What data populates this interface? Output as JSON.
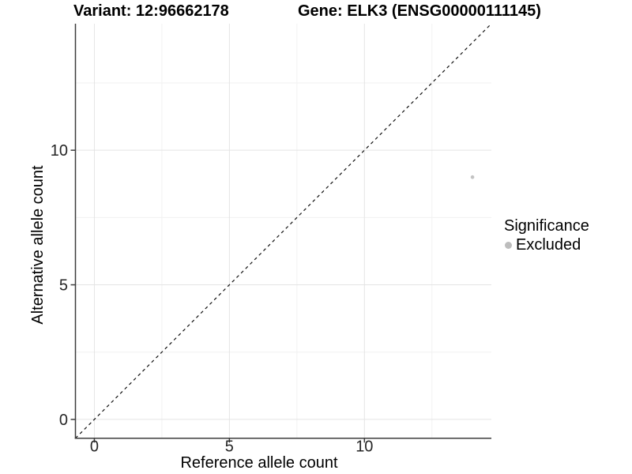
{
  "titles": {
    "variant_title": "Variant: 12:96662178",
    "gene_title": "Gene: ELK3 (ENSG00000111145)"
  },
  "axes": {
    "x_label": "Reference allele count",
    "y_label": "Alternative allele count"
  },
  "legend": {
    "title": "Significance",
    "items": [
      {
        "label": "Excluded",
        "color": "#bdbdbd"
      }
    ]
  },
  "chart_data": {
    "type": "scatter",
    "title_left": "Variant: 12:96662178",
    "title_right": "Gene: ELK3 (ENSG00000111145)",
    "xlabel": "Reference allele count",
    "ylabel": "Alternative allele count",
    "xlim": [
      -0.7,
      14.7
    ],
    "ylim": [
      -0.7,
      14.7
    ],
    "x_ticks": [
      0,
      5,
      10
    ],
    "x_minor_ticks": [
      2.5,
      7.5,
      12.5
    ],
    "y_ticks": [
      0,
      5,
      10
    ],
    "y_minor_ticks": [
      2.5,
      7.5,
      12.5
    ],
    "series": [
      {
        "name": "Excluded",
        "color": "#c3c3c3",
        "point_radius": 2.3,
        "points": [
          {
            "x": 14,
            "y": 9
          }
        ]
      }
    ],
    "reference_line": {
      "kind": "identity",
      "slope": 1,
      "intercept": 0,
      "style": "dashed",
      "color": "#111111"
    },
    "grid": {
      "major": true,
      "minor": true,
      "major_color": "#e4e4e4",
      "minor_color": "#f1f1f1"
    },
    "legend_position": "right",
    "axis_color": "#3c3c3c",
    "tick_label_color": "#262626",
    "tick_label_size": 20
  }
}
